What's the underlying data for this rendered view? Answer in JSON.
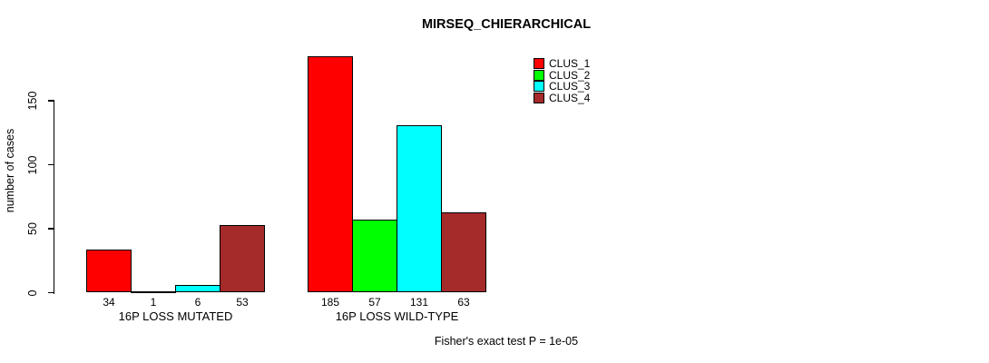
{
  "chart_data": {
    "type": "bar",
    "title": "MIRSEQ_CHIERARCHICAL",
    "ylabel": "number of cases",
    "xlabel": "",
    "yticks": [
      0,
      50,
      100,
      150
    ],
    "ylim": [
      0,
      185
    ],
    "grid": false,
    "legend_position": "top-right",
    "categories": [
      "16P LOSS MUTATED",
      "16P LOSS WILD-TYPE"
    ],
    "series": [
      {
        "name": "CLUS_1",
        "color": "#ff0000",
        "values": [
          34,
          185
        ]
      },
      {
        "name": "CLUS_2",
        "color": "#00ff00",
        "values": [
          1,
          57
        ]
      },
      {
        "name": "CLUS_3",
        "color": "#00ffff",
        "values": [
          6,
          131
        ]
      },
      {
        "name": "CLUS_4",
        "color": "#a52a2a",
        "values": [
          53,
          63
        ]
      }
    ],
    "footnote": "Fisher's exact test P = 1e-05"
  },
  "colors": {
    "background": "#ffffff",
    "axis": "#000000",
    "text": "#000000"
  }
}
